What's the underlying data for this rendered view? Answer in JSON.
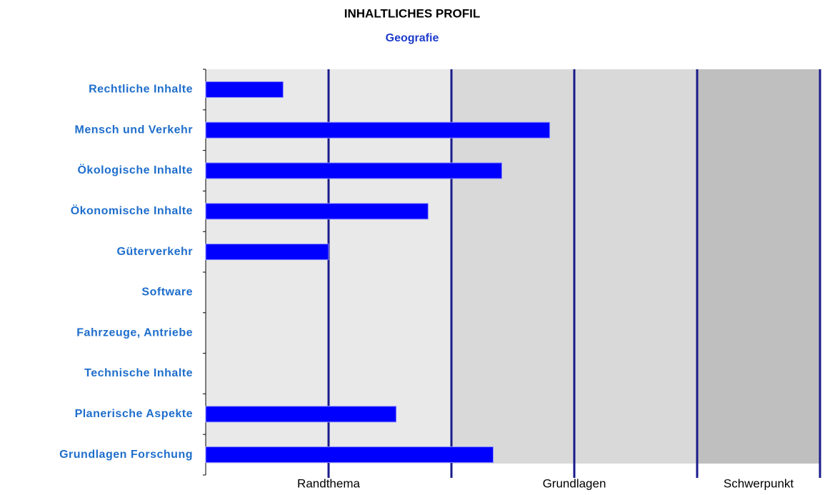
{
  "chart_data": {
    "type": "bar",
    "orientation": "horizontal",
    "title": "INHALTLICHES PROFIL",
    "subtitle": "Geografie",
    "categories": [
      "Rechtliche Inhalte",
      "Mensch und Verkehr",
      "Ökologische Inhalte",
      "Ökonomische Inhalte",
      "Güterverkehr",
      "Software",
      "Fahrzeuge, Antriebe",
      "Technische Inhalte",
      "Planerische Aspekte",
      "Grundlagen Forschung"
    ],
    "values": [
      0.63,
      2.8,
      2.41,
      1.81,
      1.0,
      0,
      0,
      0,
      1.55,
      2.34
    ],
    "color": "#0000ff",
    "xlim": [
      0,
      5
    ],
    "xgrid": [
      1,
      2,
      3,
      4,
      5
    ],
    "zones": [
      {
        "label": "Randthema",
        "from": 0,
        "to": 2,
        "color": "#e9e9e9"
      },
      {
        "label": "Grundlagen",
        "from": 2,
        "to": 4,
        "color": "#d9d9d9"
      },
      {
        "label": "Schwerpunkt",
        "from": 4,
        "to": 5,
        "color": "#bfbfbf"
      }
    ]
  }
}
